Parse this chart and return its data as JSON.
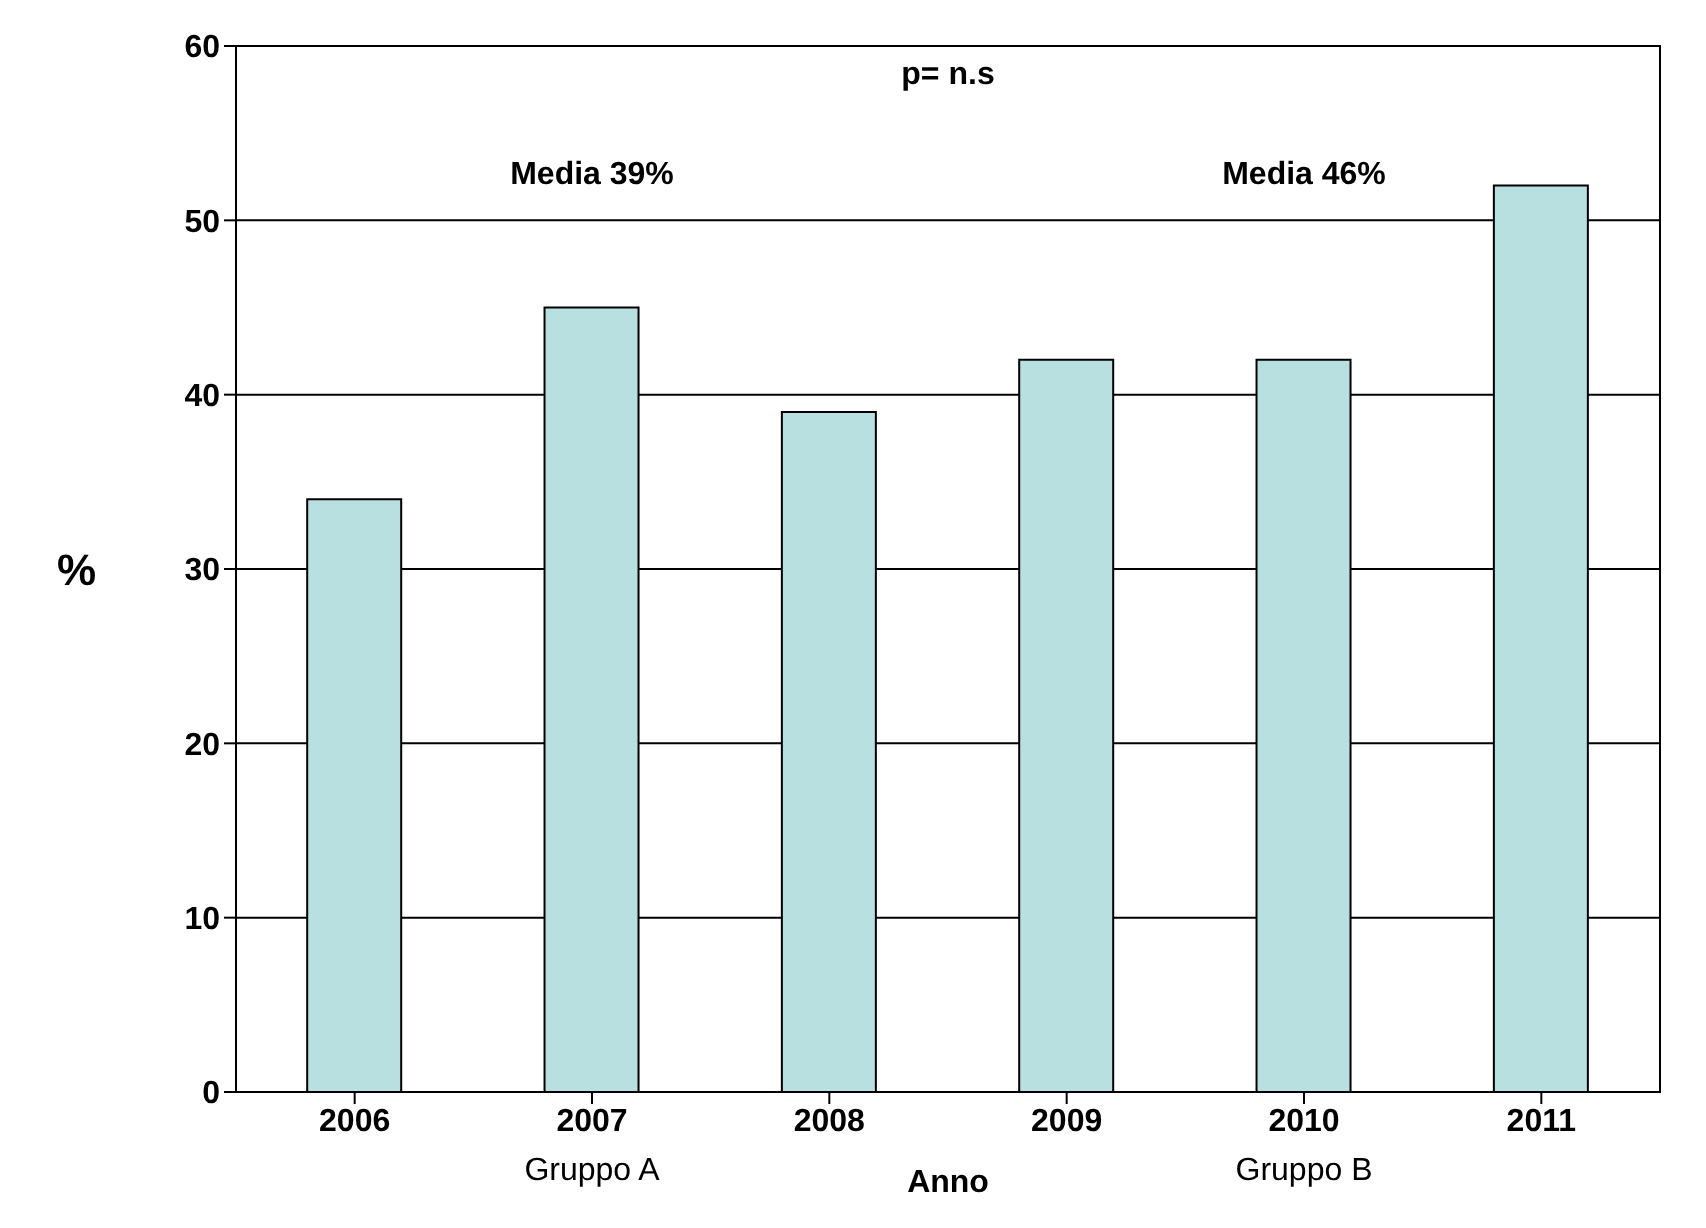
{
  "chart_data": {
    "type": "bar",
    "xlabel": "Anno",
    "ylabel": "%",
    "categories": [
      "2006",
      "2007",
      "2008",
      "2009",
      "2010",
      "2011"
    ],
    "values": [
      34,
      45,
      39,
      42,
      42,
      52
    ],
    "color": "#b8e0e0",
    "ylim": [
      0,
      60
    ],
    "yticks": [
      0,
      10,
      20,
      30,
      40,
      50,
      60
    ],
    "grid": "y",
    "annotations": [
      "p= n.s",
      "Media 39%",
      "Media 46%",
      "Gruppo A",
      "Gruppo B"
    ]
  }
}
